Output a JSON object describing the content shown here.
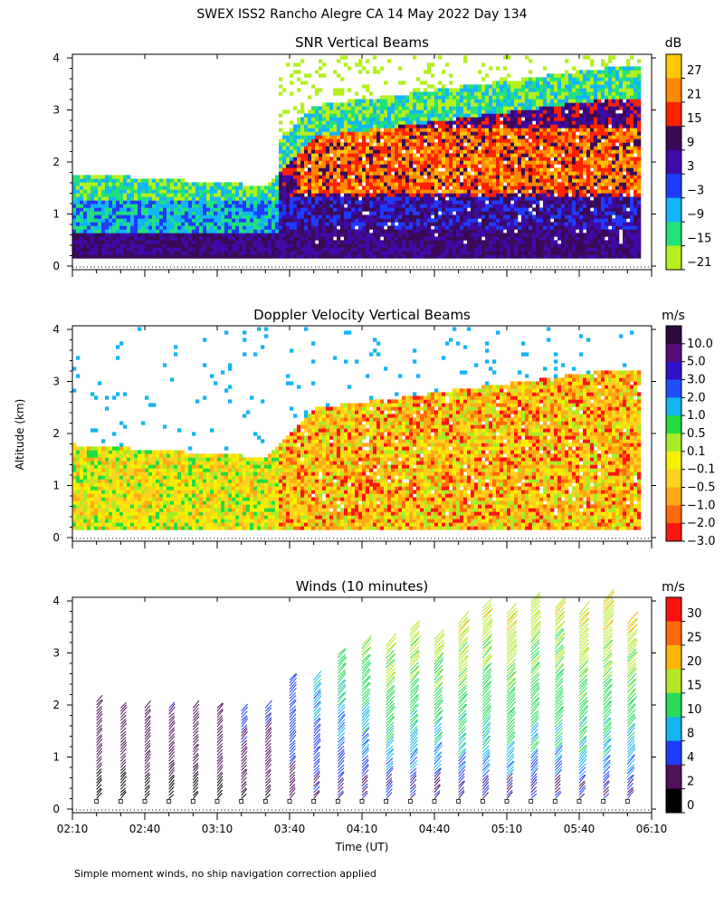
{
  "figure_title": "SWEX ISS2 Rancho Alegre CA  14 May 2022 Day 134",
  "footnote": "Simple moment winds, no ship navigation correction applied",
  "shared_axes": {
    "ylabel": "Altitude (km)",
    "xlabel": "Time (UT)",
    "x_ticks": [
      "02:10",
      "02:40",
      "03:10",
      "03:40",
      "04:10",
      "04:40",
      "05:10",
      "05:40",
      "06:10"
    ],
    "y_ticks": [
      "0",
      "1",
      "2",
      "3",
      "4"
    ]
  },
  "chart_data": [
    {
      "type": "heatmap",
      "title": "SNR Vertical Beams",
      "xlabel": "Time (UT)",
      "ylabel": "Altitude (km)",
      "xlim": [
        "02:10",
        "06:10"
      ],
      "ylim": [
        0,
        4
      ],
      "colorbar": {
        "unit": "dB",
        "labels": [
          "27",
          "21",
          "15",
          "9",
          "3",
          "−3",
          "−9",
          "−15",
          "−21"
        ],
        "colors": [
          "#ffc800",
          "#ff8800",
          "#ff2200",
          "#3a0a58",
          "#3e0aa8",
          "#1e3cff",
          "#14b4ff",
          "#22e07a",
          "#b4f01e"
        ]
      },
      "description_regime": {
        "before_0340": "weak SNR layer below ~1.8 km",
        "after_0340": "boundary layer deepens to ~3 km with strong echoes 15-27 dB between 1.5 and 2.5 km"
      }
    },
    {
      "type": "heatmap",
      "title": "Doppler Velocity Vertical Beams",
      "xlabel": "Time (UT)",
      "ylabel": "Altitude (km)",
      "xlim": [
        "02:10",
        "06:10"
      ],
      "ylim": [
        0,
        4
      ],
      "colorbar": {
        "unit": "m/s",
        "labels": [
          "10.0",
          "5.0",
          "3.0",
          "2.0",
          "1.0",
          "0.5",
          "0.1",
          "−0.1",
          "−0.5",
          "−1.0",
          "−2.0",
          "−3.0"
        ],
        "colors": [
          "#2a0a3a",
          "#5a0a7a",
          "#3010c8",
          "#1e50ff",
          "#14b4f0",
          "#22dc40",
          "#a8ec28",
          "#f4f000",
          "#ffd21e",
          "#ffaa14",
          "#ff6a0a",
          "#ff1414"
        ]
      }
    },
    {
      "type": "scatter",
      "title": "Winds (10 minutes)",
      "xlabel": "Time (UT)",
      "ylabel": "Altitude (km)",
      "xlim": [
        "02:10",
        "06:10"
      ],
      "ylim": [
        0,
        4
      ],
      "colorbar": {
        "unit": "m/s",
        "labels": [
          "30",
          "25",
          "20",
          "15",
          "10",
          "8",
          "4",
          "2",
          "0"
        ],
        "colors": [
          "#ff1010",
          "#ff6a0a",
          "#ffb400",
          "#b4e628",
          "#28dc5a",
          "#14b4f0",
          "#1e3cff",
          "#50105a",
          "#000000"
        ]
      },
      "profile_times": [
        "02:20",
        "02:30",
        "02:40",
        "02:50",
        "03:00",
        "03:10",
        "03:20",
        "03:30",
        "03:40",
        "03:50",
        "04:00",
        "04:10",
        "04:20",
        "04:30",
        "04:40",
        "04:50",
        "05:00",
        "05:10",
        "05:20",
        "05:30",
        "05:40",
        "05:50",
        "06:00"
      ],
      "profile_top_km": [
        2.1,
        2.0,
        2.0,
        1.95,
        2.0,
        2.0,
        1.9,
        2.0,
        2.5,
        2.5,
        3.0,
        3.2,
        3.2,
        3.5,
        3.3,
        3.6,
        3.9,
        3.8,
        4.0,
        3.9,
        3.8,
        4.0,
        3.6
      ],
      "typical_speed_ms": [
        3,
        3,
        3,
        3,
        3,
        3,
        4,
        4,
        6,
        8,
        10,
        12,
        14,
        14,
        14,
        15,
        15,
        16,
        15,
        15,
        16,
        16,
        15
      ]
    }
  ]
}
